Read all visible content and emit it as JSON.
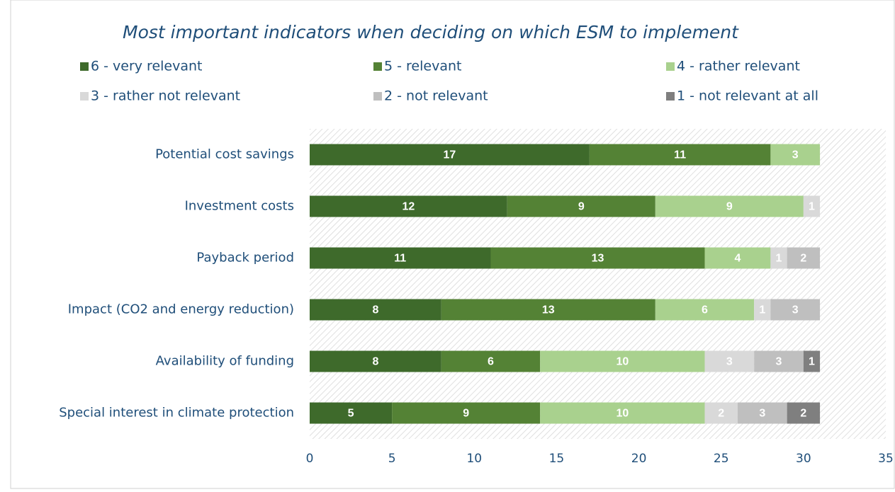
{
  "chart_data": {
    "type": "stacked_barh",
    "title": "Most important indicators when deciding on which ESM to implement",
    "categories": [
      "Potential cost savings",
      "Investment costs",
      "Payback period",
      "Impact (CO2 and energy reduction)",
      "Availability of funding",
      "Special interest in climate protection"
    ],
    "series": [
      {
        "name": "6 - very relevant",
        "color": "#3e6a2b",
        "values": [
          17,
          12,
          11,
          8,
          8,
          5
        ]
      },
      {
        "name": "5 - relevant",
        "color": "#548235",
        "values": [
          11,
          9,
          13,
          13,
          6,
          9
        ]
      },
      {
        "name": "4 - rather relevant",
        "color": "#a9d18e",
        "values": [
          3,
          9,
          4,
          6,
          10,
          10
        ]
      },
      {
        "name": "3 - rather not relevant",
        "color": "#d9d9d9",
        "values": [
          null,
          1,
          1,
          1,
          3,
          2
        ]
      },
      {
        "name": "2 - not relevant",
        "color": "#bfbfbf",
        "values": [
          null,
          null,
          2,
          3,
          3,
          3
        ]
      },
      {
        "name": "1 - not relevant at all",
        "color": "#7f7f7f",
        "values": [
          null,
          null,
          null,
          null,
          1,
          2
        ]
      }
    ],
    "xlim": [
      0,
      35
    ],
    "xticks": [
      0,
      5,
      10,
      15,
      20,
      25,
      30,
      35
    ],
    "grid": false
  }
}
